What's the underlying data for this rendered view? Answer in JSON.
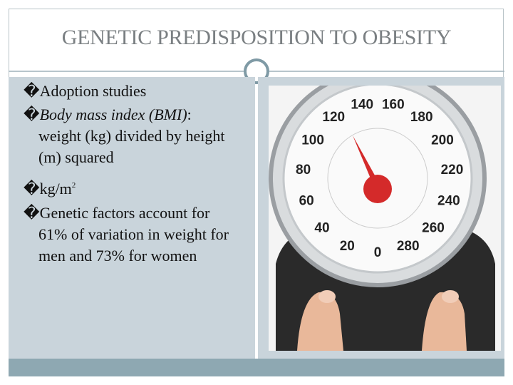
{
  "title": "GENETIC PREDISPOSITION TO OBESITY",
  "bullet": "�",
  "items": [
    {
      "segments": [
        {
          "text": "Adoption studies",
          "style": "normal"
        }
      ]
    },
    {
      "segments": [
        {
          "text": "Body mass index (BMI)",
          "style": "italic"
        },
        {
          "text": ": weight (kg) divided by height (m) squared",
          "style": "normal"
        }
      ]
    },
    {
      "segments": [
        {
          "text": "kg/m",
          "style": "normal"
        },
        {
          "text": "2",
          "style": "superscript"
        }
      ]
    },
    {
      "segments": [
        {
          "text": "Genetic factors account for 61% of variation in weight for men and 73% for women",
          "style": "normal"
        }
      ]
    }
  ],
  "scale": {
    "dial_labels": [
      "0",
      "20",
      "40",
      "60",
      "80",
      "100",
      "120",
      "140",
      "160",
      "180",
      "200",
      "220",
      "240",
      "260",
      "280"
    ]
  }
}
